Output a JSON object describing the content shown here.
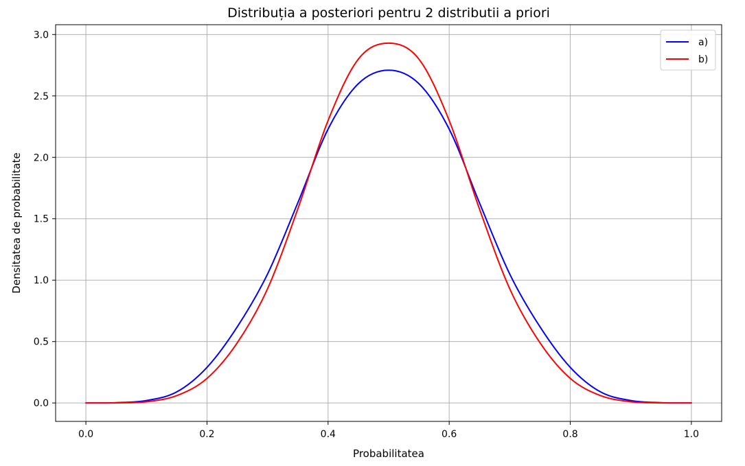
{
  "chart_data": {
    "type": "line",
    "title": "Distribuția a posteriori pentru 2 distributii a priori",
    "xlabel": "Probabilitatea",
    "ylabel": "Densitatea de probabilitate",
    "xlim": [
      -0.05,
      1.05
    ],
    "ylim": [
      -0.15,
      3.08
    ],
    "xticks": [
      0.0,
      0.2,
      0.4,
      0.6,
      0.8,
      1.0
    ],
    "xtick_labels": [
      "0.0",
      "0.2",
      "0.4",
      "0.6",
      "0.8",
      "1.0"
    ],
    "yticks": [
      0.0,
      0.5,
      1.0,
      1.5,
      2.0,
      2.5,
      3.0
    ],
    "ytick_labels": [
      "0.0",
      "0.5",
      "1.0",
      "1.5",
      "2.0",
      "2.5",
      "3.0"
    ],
    "grid": true,
    "legend_position": "top-right",
    "series": [
      {
        "name": "a)",
        "color": "#0000ff",
        "x": [
          0.0,
          0.05,
          0.1,
          0.15,
          0.2,
          0.25,
          0.3,
          0.35,
          0.4,
          0.45,
          0.5,
          0.55,
          0.6,
          0.65,
          0.7,
          0.75,
          0.8,
          0.85,
          0.9,
          0.95,
          1.0
        ],
        "y": [
          0.0,
          0.0025,
          0.02,
          0.09,
          0.29,
          0.62,
          1.05,
          1.63,
          2.23,
          2.6,
          2.71,
          2.6,
          2.23,
          1.63,
          1.05,
          0.62,
          0.29,
          0.09,
          0.02,
          0.0025,
          0.0
        ]
      },
      {
        "name": "b)",
        "color": "#ff0000",
        "x": [
          0.0,
          0.05,
          0.1,
          0.15,
          0.2,
          0.25,
          0.3,
          0.35,
          0.4,
          0.45,
          0.5,
          0.55,
          0.6,
          0.65,
          0.7,
          0.75,
          0.8,
          0.85,
          0.9,
          0.95,
          1.0
        ],
        "y": [
          0.0,
          0.001,
          0.01,
          0.06,
          0.2,
          0.49,
          0.93,
          1.58,
          2.3,
          2.8,
          2.93,
          2.8,
          2.3,
          1.58,
          0.93,
          0.49,
          0.2,
          0.06,
          0.01,
          0.001,
          0.0
        ]
      }
    ]
  }
}
